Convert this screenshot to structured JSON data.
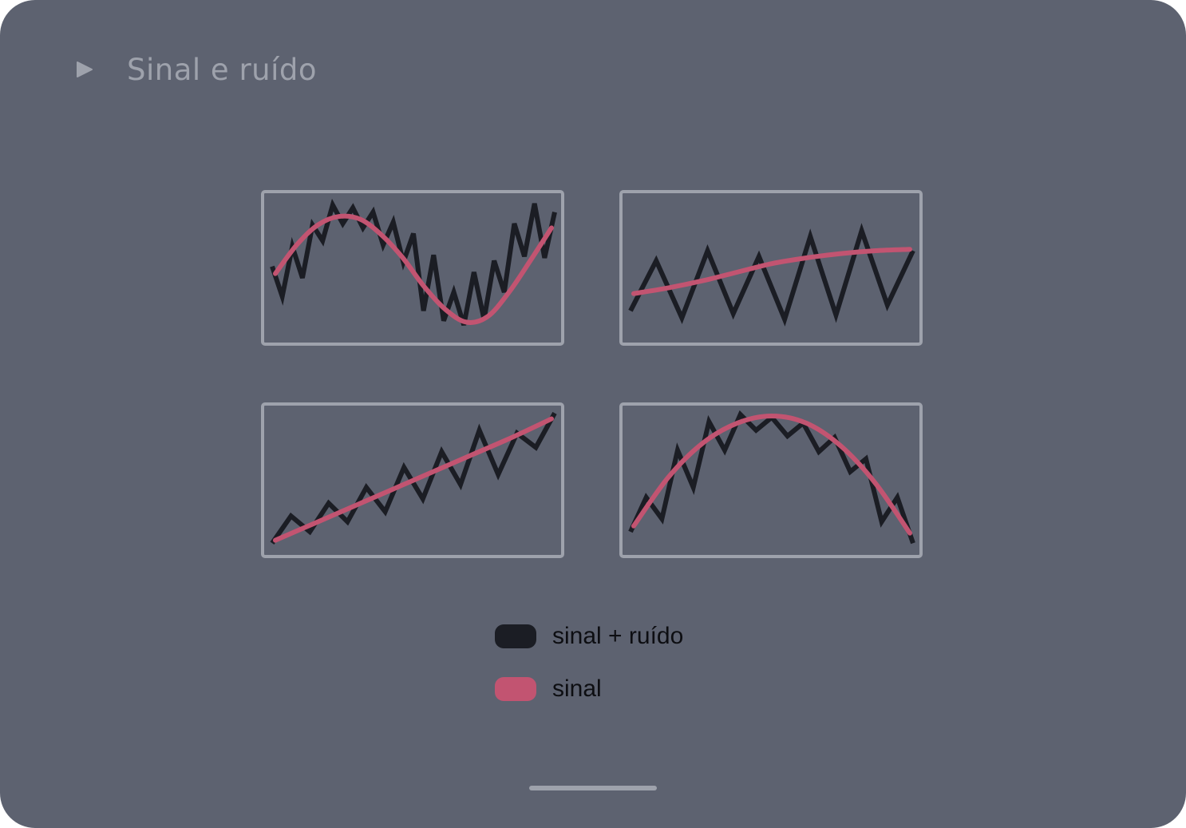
{
  "title": "Sinal e ruído",
  "colors": {
    "background": "#5d6270",
    "frame": "#9ea2ac",
    "noisy": "#1b1d24",
    "signal": "#c25471"
  },
  "legend": [
    {
      "label": "sinal + ruído",
      "color": "#1b1d24"
    },
    {
      "label": "sinal",
      "color": "#c25471"
    }
  ],
  "chart_data": [
    {
      "type": "line",
      "series": [
        {
          "values": [
            0.51,
            0.3,
            0.65,
            0.43,
            0.8,
            0.69,
            0.94,
            0.81,
            0.92,
            0.78,
            0.89,
            0.66,
            0.82,
            0.54,
            0.74,
            0.2,
            0.59,
            0.13,
            0.33,
            0.1,
            0.47,
            0.14,
            0.55,
            0.33,
            0.81,
            0.58,
            0.95,
            0.57,
            0.89
          ]
        },
        {
          "values": [
            0.46,
            0.66,
            0.8,
            0.86,
            0.84,
            0.73,
            0.57,
            0.37,
            0.21,
            0.12,
            0.16,
            0.33,
            0.55,
            0.78
          ]
        }
      ]
    },
    {
      "type": "line",
      "series": [
        {
          "values": [
            0.2,
            0.55,
            0.15,
            0.62,
            0.18,
            0.58,
            0.14,
            0.72,
            0.17,
            0.76,
            0.24,
            0.62
          ]
        },
        {
          "values": [
            0.32,
            0.36,
            0.41,
            0.47,
            0.53,
            0.57,
            0.6,
            0.62,
            0.63
          ]
        }
      ]
    },
    {
      "type": "line",
      "series": [
        {
          "values": [
            0.06,
            0.25,
            0.14,
            0.34,
            0.21,
            0.45,
            0.28,
            0.59,
            0.37,
            0.7,
            0.47,
            0.85,
            0.54,
            0.83,
            0.73,
            0.97
          ]
        },
        {
          "values": [
            0.08,
            0.2,
            0.32,
            0.44,
            0.56,
            0.68,
            0.8,
            0.93
          ]
        }
      ]
    },
    {
      "type": "line",
      "series": [
        {
          "values": [
            0.14,
            0.38,
            0.23,
            0.71,
            0.45,
            0.91,
            0.71,
            0.96,
            0.85,
            0.94,
            0.81,
            0.9,
            0.7,
            0.8,
            0.56,
            0.65,
            0.21,
            0.38,
            0.06
          ]
        },
        {
          "values": [
            0.18,
            0.52,
            0.76,
            0.9,
            0.95,
            0.9,
            0.74,
            0.48,
            0.13
          ]
        }
      ]
    }
  ]
}
